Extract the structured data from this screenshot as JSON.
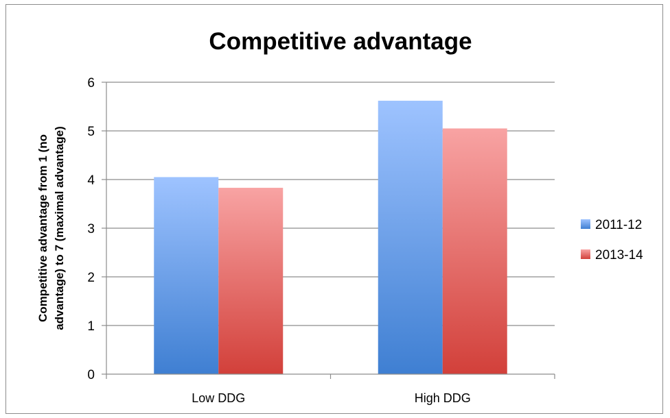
{
  "chart_data": {
    "type": "bar",
    "title": "Competitive advantage",
    "ylabel_lines": [
      "Competitive advantage  from 1 (no",
      "advantage)  to 7 (maximal advantage)"
    ],
    "xlabel": "",
    "categories": [
      "Low DDG",
      "High DDG"
    ],
    "series": [
      {
        "name": "2011-12",
        "values": [
          4.05,
          5.62
        ],
        "color_top": "#9ec3ff",
        "color_bottom": "#3f7fd2"
      },
      {
        "name": "2013-14",
        "values": [
          3.83,
          5.05
        ],
        "color_top": "#f8a3a3",
        "color_bottom": "#d2403a"
      }
    ],
    "ylim": [
      0,
      6
    ],
    "yticks": [
      "0",
      "1",
      "2",
      "3",
      "4",
      "5",
      "6"
    ],
    "grid": true,
    "legend_position": "right"
  }
}
